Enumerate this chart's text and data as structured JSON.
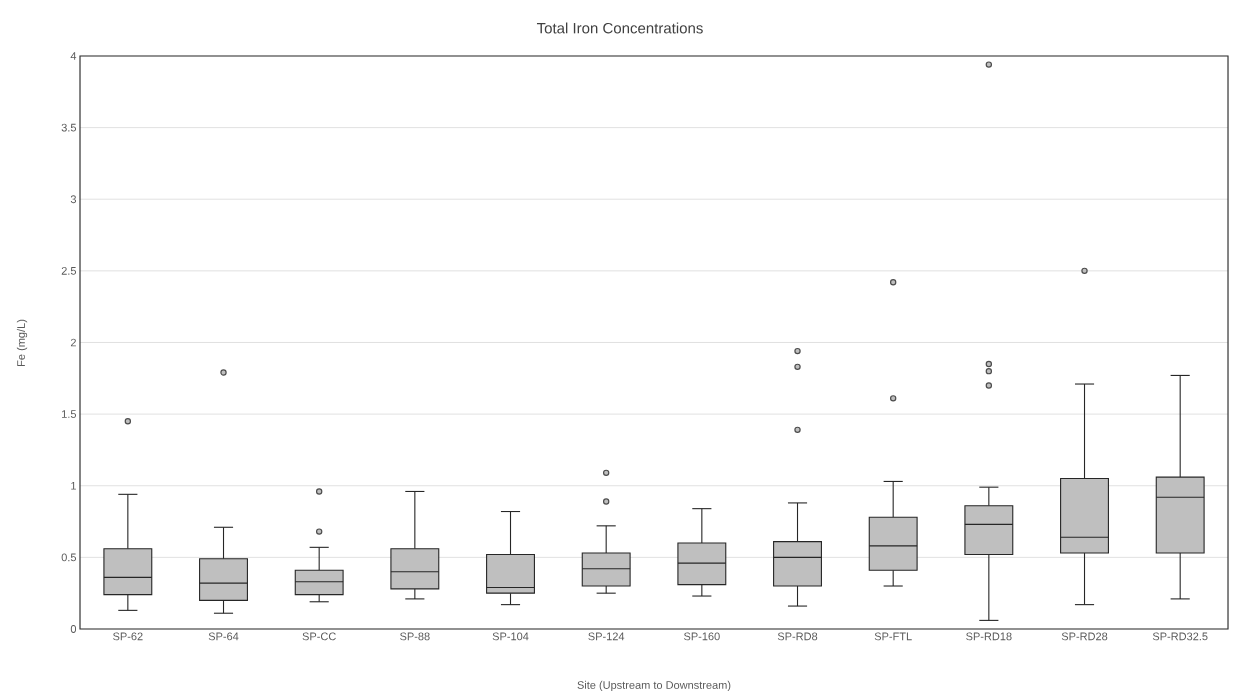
{
  "chart_data": {
    "type": "box",
    "title": "Total Iron Concentrations",
    "xlabel": "Site (Upstream to Downstream)",
    "ylabel": "Fe (mg/L)",
    "categories": [
      "SP-62",
      "SP-64",
      "SP-CC",
      "SP-88",
      "SP-104",
      "SP-124",
      "SP-160",
      "SP-RD8",
      "SP-FTL",
      "SP-RD18",
      "SP-RD28",
      "SP-RD32.5"
    ],
    "boxes": [
      {
        "low": 0.13,
        "q1": 0.24,
        "median": 0.36,
        "q3": 0.56,
        "high": 0.94,
        "outliers": [
          1.45
        ]
      },
      {
        "low": 0.11,
        "q1": 0.2,
        "median": 0.32,
        "q3": 0.49,
        "high": 0.71,
        "outliers": [
          1.79
        ]
      },
      {
        "low": 0.19,
        "q1": 0.24,
        "median": 0.33,
        "q3": 0.41,
        "high": 0.57,
        "outliers": [
          0.68,
          0.96
        ]
      },
      {
        "low": 0.21,
        "q1": 0.28,
        "median": 0.4,
        "q3": 0.56,
        "high": 0.96
      },
      {
        "low": 0.17,
        "q1": 0.25,
        "median": 0.29,
        "q3": 0.52,
        "high": 0.82
      },
      {
        "low": 0.25,
        "q1": 0.3,
        "median": 0.42,
        "q3": 0.53,
        "high": 0.72,
        "outliers": [
          0.89,
          1.09
        ]
      },
      {
        "low": 0.23,
        "q1": 0.31,
        "median": 0.46,
        "q3": 0.6,
        "high": 0.84
      },
      {
        "low": 0.16,
        "q1": 0.3,
        "median": 0.5,
        "q3": 0.61,
        "high": 0.88,
        "outliers": [
          1.39,
          1.83,
          1.94
        ]
      },
      {
        "low": 0.3,
        "q1": 0.41,
        "median": 0.58,
        "q3": 0.78,
        "high": 1.03,
        "outliers": [
          1.61,
          2.42
        ]
      },
      {
        "low": 0.06,
        "q1": 0.52,
        "median": 0.73,
        "q3": 0.86,
        "high": 0.99,
        "outliers": [
          1.7,
          1.8,
          1.85,
          3.94
        ]
      },
      {
        "low": 0.17,
        "q1": 0.53,
        "median": 0.64,
        "q3": 1.05,
        "high": 1.71,
        "outliers": [
          2.5
        ]
      },
      {
        "low": 0.21,
        "q1": 0.53,
        "median": 0.92,
        "q3": 1.06,
        "high": 1.77
      }
    ],
    "color": "#bfbfbf",
    "marker": "circle",
    "grid": "y",
    "ylim": [
      0,
      4
    ],
    "yticks": [
      0,
      0.5,
      1,
      1.5,
      2,
      2.5,
      3,
      3.5,
      4
    ]
  }
}
